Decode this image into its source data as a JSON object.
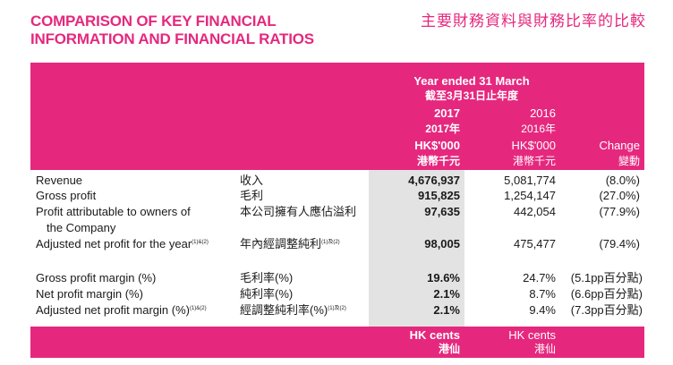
{
  "title": {
    "en": "COMPARISON OF KEY FINANCIAL\nINFORMATION AND FINANCIAL RATIOS",
    "zh": "主要財務資料與財務比率的比較"
  },
  "header": {
    "period_en": "Year ended 31 March",
    "period_zh": "截至3月31日止年度",
    "col2017_year": "2017",
    "col2017_year_zh": "2017年",
    "col2017_unit": "HK$'000",
    "col2017_unit_zh": "港幣千元",
    "col2016_year": "2016",
    "col2016_year_zh": "2016年",
    "col2016_unit": "HK$'000",
    "col2016_unit_zh": "港幣千元",
    "change_en": "Change",
    "change_zh": "變動"
  },
  "rows": [
    {
      "en": "Revenue",
      "zh": "收入",
      "v2017": "4,676,937",
      "v2016": "5,081,774",
      "change": "(8.0%)"
    },
    {
      "en": "Gross profit",
      "zh": "毛利",
      "v2017": "915,825",
      "v2016": "1,254,147",
      "change": "(27.0%)"
    },
    {
      "en": "Profit attributable to owners of",
      "en2": "the Company",
      "zh": "本公司擁有人應佔溢利",
      "v2017": "97,635",
      "v2016": "442,054",
      "change": "(77.9%)"
    },
    {
      "en": "Adjusted net profit for the year",
      "en_sup": "(1)&(2)",
      "zh": "年內經調整純利",
      "zh_sup": "(1)及(2)",
      "v2017": "98,005",
      "v2016": "475,477",
      "change": "(79.4%)"
    },
    {
      "en": "Gross profit margin (%)",
      "zh": "毛利率(%)",
      "v2017": "19.6%",
      "v2016": "24.7%",
      "change": "(5.1pp百分點)"
    },
    {
      "en": "Net profit margin (%)",
      "zh": "純利率(%)",
      "v2017": "2.1%",
      "v2016": "8.7%",
      "change": "(6.6pp百分點)"
    },
    {
      "en": "Adjusted net profit margin (%)",
      "en_sup": "(1)&(2)",
      "zh": "經調整純利率(%)",
      "zh_sup": "(1)及(2)",
      "v2017": "2.1%",
      "v2016": "9.4%",
      "change": "(7.3pp百分點)"
    }
  ],
  "footer": {
    "c2017_en": "HK cents",
    "c2017_zh": "港仙",
    "c2016_en": "HK cents",
    "c2016_zh": "港仙"
  }
}
